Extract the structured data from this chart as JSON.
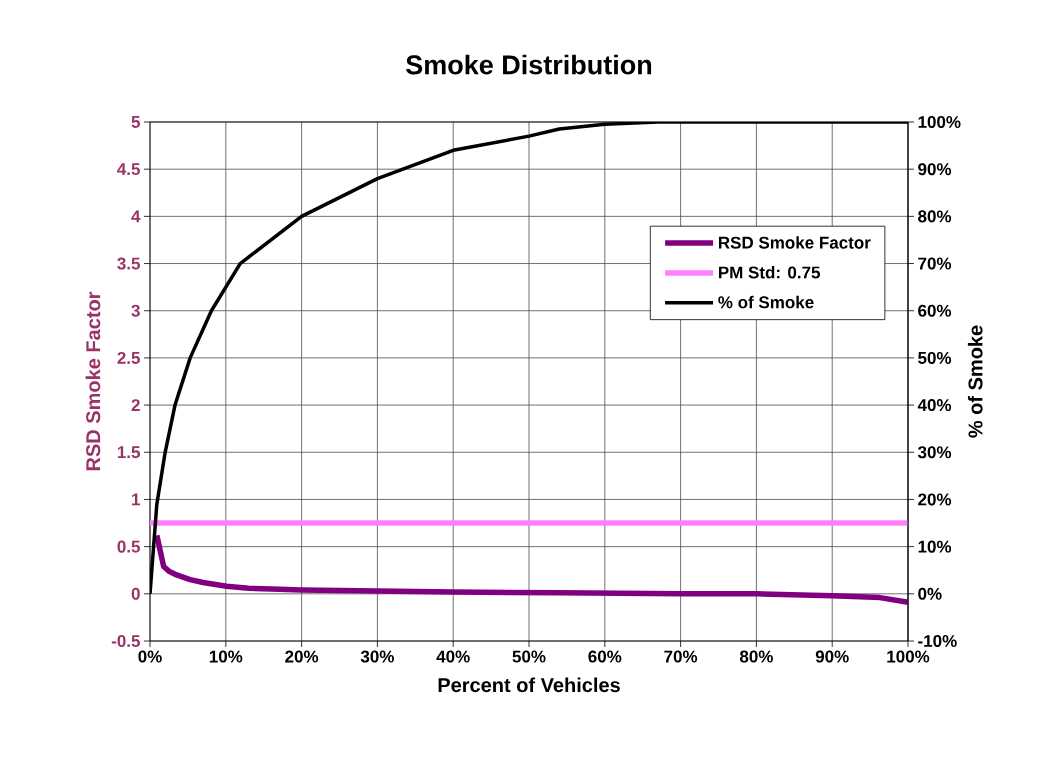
{
  "chart_data": {
    "type": "line",
    "title": "Smoke Distribution",
    "xlabel": "Percent of Vehicles",
    "ylabel": "RSD Smoke Factor",
    "y2label": "% of Smoke",
    "xlim": [
      0,
      100
    ],
    "xticks": [
      {
        "value": 0,
        "label": "0%"
      },
      {
        "value": 10,
        "label": "10%"
      },
      {
        "value": 20,
        "label": "20%"
      },
      {
        "value": 30,
        "label": "30%"
      },
      {
        "value": 40,
        "label": "40%"
      },
      {
        "value": 50,
        "label": "50%"
      },
      {
        "value": 60,
        "label": "60%"
      },
      {
        "value": 70,
        "label": "70%"
      },
      {
        "value": 80,
        "label": "80%"
      },
      {
        "value": 90,
        "label": "90%"
      },
      {
        "value": 100,
        "label": "100%"
      }
    ],
    "ylim": [
      -0.5,
      5
    ],
    "yticks": [
      -0.5,
      0,
      0.5,
      1,
      1.5,
      2,
      2.5,
      3,
      3.5,
      4,
      4.5,
      5
    ],
    "y2lim": [
      -10,
      100
    ],
    "y2ticks": [
      {
        "value": -10,
        "label": "-10%"
      },
      {
        "value": 0,
        "label": "0%"
      },
      {
        "value": 10,
        "label": "10%"
      },
      {
        "value": 20,
        "label": "20%"
      },
      {
        "value": 30,
        "label": "30%"
      },
      {
        "value": 40,
        "label": "40%"
      },
      {
        "value": 50,
        "label": "50%"
      },
      {
        "value": 60,
        "label": "60%"
      },
      {
        "value": 70,
        "label": "70%"
      },
      {
        "value": 80,
        "label": "80%"
      },
      {
        "value": 90,
        "label": "90%"
      },
      {
        "value": 100,
        "label": "100%"
      }
    ],
    "grid": true,
    "legend": "top right",
    "series": [
      {
        "name": "RSD Smoke Factor",
        "color": "#800080",
        "x": [
          0.9,
          1.8,
          2.5,
          3.5,
          5.3,
          7,
          10.1,
          13,
          16,
          20,
          30,
          40,
          54,
          70,
          80,
          90,
          96.3,
          100
        ],
        "values": [
          0.62,
          0.29,
          0.24,
          0.2,
          0.15,
          0.12,
          0.08,
          0.06,
          0.05,
          0.04,
          0.03,
          0.02,
          0.01,
          0.0,
          0.0,
          -0.02,
          -0.04,
          -0.09
        ]
      },
      {
        "name": "PM Std: 0.75",
        "color": "#ff80ff",
        "x": [
          0,
          100
        ],
        "values": [
          0.75,
          0.75
        ]
      },
      {
        "name": "% of Smoke",
        "color": "#000000",
        "axis": "y2",
        "x": [
          0,
          0.9,
          2,
          3.3,
          5.3,
          8.1,
          11.9,
          20,
          30,
          40,
          50,
          54,
          60,
          67,
          80,
          100
        ],
        "values": [
          0,
          19,
          30,
          40,
          50,
          60,
          70,
          80,
          88,
          94,
          97,
          98.5,
          99.5,
          100,
          100,
          100
        ]
      }
    ]
  }
}
